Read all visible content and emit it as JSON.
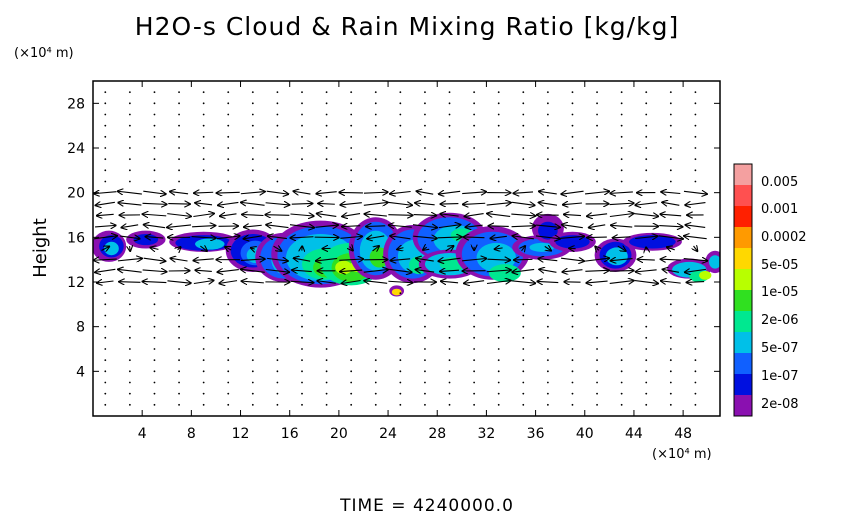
{
  "title": "H2O-s Cloud & Rain Mixing Ratio [kg/kg]",
  "time_label": "TIME  =  4240000.0",
  "y_unit_label": "(×10⁴ m)",
  "x_unit_label": "(×10⁴ m)",
  "chart_data": {
    "type": "heatmap",
    "title": "H2O-s Cloud & Rain Mixing Ratio [kg/kg]",
    "xlabel": "",
    "ylabel": "Height",
    "xlim": [
      0,
      51
    ],
    "ylim": [
      0,
      30
    ],
    "x_ticks": [
      4,
      8,
      12,
      16,
      20,
      24,
      28,
      32,
      36,
      40,
      44,
      48
    ],
    "y_ticks": [
      4,
      8,
      12,
      16,
      20,
      24,
      28
    ],
    "colorbar_labels": [
      "0.005",
      "0.001",
      "0.0002",
      "5e-05",
      "1e-05",
      "2e-06",
      "5e-07",
      "1e-07",
      "2e-08"
    ],
    "colorbar_colors": [
      "#f4a0a0",
      "#ff5050",
      "#ff2000",
      "#ff9a00",
      "#ffd800",
      "#b8ff00",
      "#30e020",
      "#00e890",
      "#00c0e8",
      "#1060ff",
      "#0010e0",
      "#8a10b0"
    ],
    "grid": false,
    "time": "4240000.0"
  }
}
